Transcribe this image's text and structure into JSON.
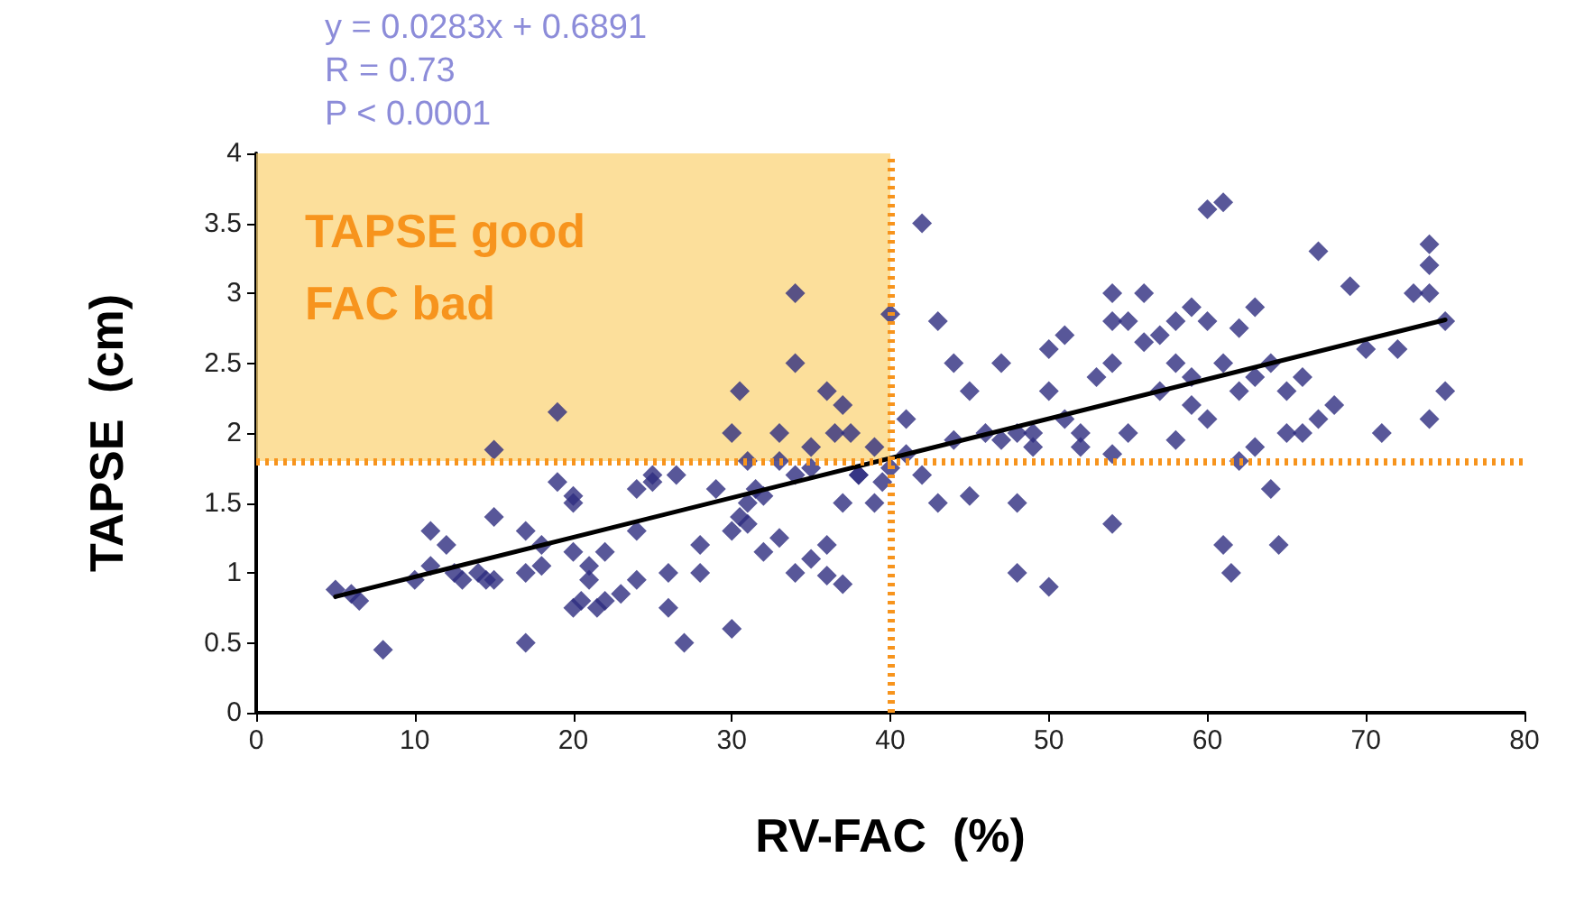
{
  "chart_data": {
    "type": "scatter",
    "xlabel": "RV-FAC  (%)",
    "ylabel": "TAPSE  (cm)",
    "annotations": [
      "y = 0.0283x + 0.6891",
      "R = 0.73",
      "P < 0.0001"
    ],
    "xlim": [
      0,
      80
    ],
    "xticks": [
      0,
      10,
      20,
      30,
      40,
      50,
      60,
      70,
      80
    ],
    "ylim": [
      0,
      4
    ],
    "yticks": [
      0,
      0.5,
      1,
      1.5,
      2,
      2.5,
      3,
      3.5,
      4
    ],
    "grid": false,
    "marker": "diamond",
    "bands": [
      {
        "axis": "x",
        "from": 0,
        "to": 40,
        "label": "TAPSE good\nFAC bad",
        "color": "#fbd47a"
      }
    ],
    "ref_lines": [
      {
        "axis": "x",
        "value": 40,
        "color": "#f7941d",
        "line_style": "dotted"
      },
      {
        "axis": "y",
        "value": 1.8,
        "color": "#f7941d",
        "line_style": "dotted"
      }
    ],
    "series": [
      {
        "color": "#2e2d7f",
        "x": [
          5,
          6,
          6.5,
          8,
          10,
          11,
          11,
          12,
          12.5,
          13,
          14,
          14.5,
          15,
          15,
          15,
          17,
          17,
          17,
          18,
          18,
          19,
          19,
          20,
          20,
          20,
          20,
          20.5,
          21,
          21,
          21.5,
          22,
          22,
          23,
          24,
          24,
          24,
          25,
          25,
          26,
          26,
          26.5,
          27,
          28,
          28,
          29,
          30,
          30,
          30,
          30.5,
          30.5,
          31,
          31,
          31,
          31.5,
          32,
          32,
          33,
          33,
          33,
          34,
          34,
          34,
          34,
          35,
          35,
          35,
          36,
          36,
          36,
          36.5,
          37,
          37,
          37,
          37.5,
          38,
          38,
          39,
          39,
          39.5,
          40,
          40,
          41,
          41,
          42,
          42,
          43,
          43,
          44,
          44,
          45,
          45,
          46,
          47,
          47,
          48,
          48,
          48,
          49,
          49,
          50,
          50,
          50,
          51,
          51,
          52,
          52,
          53,
          54,
          54,
          54,
          54,
          54,
          55,
          55,
          56,
          56,
          57,
          57,
          58,
          58,
          58,
          59,
          59,
          59,
          60,
          60,
          60,
          61,
          61,
          61,
          61.5,
          62,
          62,
          62,
          63,
          63,
          63,
          64,
          64,
          64.5,
          65,
          65,
          66,
          66,
          67,
          67,
          68,
          69,
          70,
          71,
          72,
          73,
          74,
          74,
          74,
          74,
          75,
          75
        ],
        "values": [
          0.88,
          0.85,
          0.8,
          0.45,
          0.95,
          1.3,
          1.05,
          1.2,
          1.0,
          0.95,
          1.0,
          0.95,
          1.4,
          0.95,
          1.88,
          0.5,
          1.3,
          1.0,
          1.05,
          1.2,
          1.65,
          2.15,
          1.5,
          1.55,
          1.15,
          0.75,
          0.8,
          1.05,
          0.95,
          0.75,
          1.15,
          0.8,
          0.85,
          1.3,
          0.95,
          1.6,
          1.7,
          1.65,
          1.0,
          0.75,
          1.7,
          0.5,
          1.2,
          1.0,
          1.6,
          2.0,
          0.6,
          1.3,
          1.4,
          2.3,
          1.8,
          1.5,
          1.35,
          1.6,
          1.55,
          1.15,
          1.25,
          1.8,
          2.0,
          1.7,
          1.0,
          3.0,
          2.5,
          1.75,
          1.1,
          1.9,
          0.98,
          1.2,
          2.3,
          2.0,
          0.92,
          1.5,
          2.2,
          2.0,
          1.7,
          1.7,
          1.5,
          1.9,
          1.65,
          1.75,
          2.85,
          1.85,
          2.1,
          3.5,
          1.7,
          2.8,
          1.5,
          2.5,
          1.95,
          2.3,
          1.55,
          2.0,
          2.5,
          1.95,
          1.0,
          2.0,
          1.5,
          1.9,
          2.0,
          0.9,
          2.6,
          2.3,
          2.7,
          2.1,
          2.0,
          1.9,
          2.4,
          1.35,
          3.0,
          2.8,
          2.5,
          1.85,
          2.8,
          2.0,
          2.65,
          3.0,
          2.7,
          2.3,
          1.95,
          2.5,
          2.8,
          2.9,
          2.4,
          2.2,
          3.6,
          2.8,
          2.1,
          3.65,
          2.5,
          1.2,
          1.0,
          2.75,
          1.8,
          2.3,
          2.4,
          1.9,
          2.9,
          1.6,
          2.5,
          1.2,
          2.3,
          2.0,
          2.0,
          2.4,
          3.3,
          2.1,
          2.2,
          3.05,
          2.6,
          2.0,
          2.6,
          3.0,
          3.35,
          3.2,
          3.0,
          2.1,
          2.8,
          2.3
        ]
      },
      {
        "type": "line",
        "color": "#000000",
        "marker": "none",
        "x": [
          5,
          75
        ],
        "values": [
          0.83,
          2.81
        ]
      }
    ]
  }
}
